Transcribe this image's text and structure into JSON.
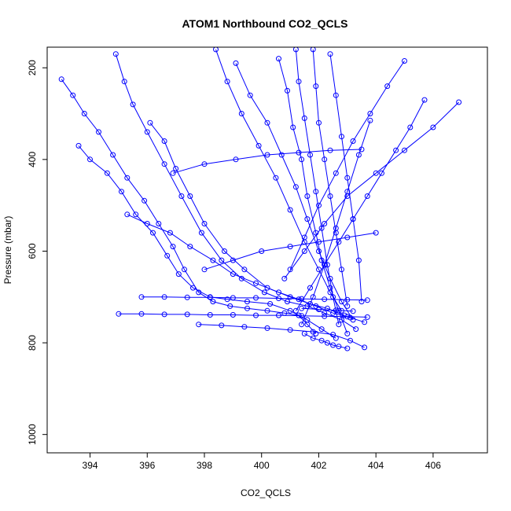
{
  "chart_data": {
    "type": "scatter",
    "title": "ATOM1 Northbound CO2_QCLS",
    "xlabel": "CO2_QCLS",
    "ylabel": "Pressure (mbar)",
    "xlim": [
      392.5,
      407.9
    ],
    "ylim": [
      1040,
      155
    ],
    "y_inverted": true,
    "grid": false,
    "legend": "none",
    "x_ticks": [
      394,
      396,
      398,
      400,
      402,
      404,
      406
    ],
    "y_ticks": [
      200,
      400,
      600,
      800,
      1000
    ],
    "color": "#0000ff",
    "marker": "open-circle",
    "connect_points": true,
    "series": [
      {
        "x": [
          393.0,
          393.4,
          393.8,
          394.3,
          394.8,
          395.3,
          395.9,
          396.4,
          396.9,
          397.3,
          397.8,
          398.3,
          398.9,
          399.5,
          400.2,
          400.8,
          401.3,
          401.6,
          401.9
        ],
        "y": [
          225,
          260,
          300,
          340,
          390,
          440,
          490,
          540,
          590,
          640,
          690,
          710,
          720,
          725,
          730,
          735,
          740,
          760,
          780
        ]
      },
      {
        "x": [
          393.6,
          394.0,
          394.6,
          395.1,
          395.6,
          396.2,
          396.7,
          397.1,
          397.6,
          398.2,
          398.8,
          399.5,
          400.3,
          401.0,
          401.6,
          402.1,
          402.6
        ],
        "y": [
          370,
          400,
          430,
          470,
          520,
          560,
          610,
          650,
          680,
          700,
          705,
          710,
          715,
          730,
          750,
          770,
          790
        ]
      },
      {
        "x": [
          394.9,
          395.2,
          395.5,
          396.0,
          396.6,
          397.2,
          397.9,
          398.6,
          399.3,
          400.1,
          400.9,
          401.6,
          402.2,
          402.8,
          403.3
        ],
        "y": [
          170,
          230,
          280,
          340,
          410,
          480,
          560,
          620,
          660,
          690,
          710,
          720,
          735,
          750,
          770
        ]
      },
      {
        "x": [
          395.3,
          396.0,
          396.8,
          397.5,
          398.3,
          399.0,
          399.8,
          400.6,
          401.3,
          401.9,
          402.5,
          403.1,
          403.6
        ],
        "y": [
          520,
          540,
          560,
          590,
          620,
          650,
          670,
          690,
          705,
          720,
          735,
          745,
          755
        ]
      },
      {
        "x": [
          396.1,
          396.6,
          397.0,
          397.5,
          398.0,
          398.7,
          399.4,
          400.2,
          401.0,
          401.7,
          402.3,
          402.9
        ],
        "y": [
          320,
          360,
          420,
          480,
          540,
          600,
          640,
          680,
          700,
          715,
          725,
          740
        ]
      },
      {
        "x": [
          395.0,
          395.8,
          396.6,
          397.4,
          398.2,
          399.0,
          399.8,
          400.6,
          401.4,
          402.2,
          403.0,
          403.7
        ],
        "y": [
          737,
          737,
          738,
          738,
          739,
          739,
          740,
          740,
          741,
          742,
          743,
          744
        ]
      },
      {
        "x": [
          395.8,
          396.6,
          397.4,
          398.2,
          399.0,
          399.8,
          400.6,
          401.4,
          402.2,
          403.0,
          403.7
        ],
        "y": [
          700,
          700,
          701,
          701,
          702,
          702,
          703,
          704,
          705,
          706,
          707
        ]
      },
      {
        "x": [
          397.8,
          398.6,
          399.4,
          400.2,
          401.0,
          401.8,
          402.5,
          403.1,
          403.6
        ],
        "y": [
          760,
          762,
          765,
          768,
          772,
          776,
          782,
          795,
          810
        ]
      },
      {
        "x": [
          398.4,
          398.8,
          399.3,
          399.9,
          400.5,
          401.0,
          401.5,
          402.0,
          402.4,
          402.8
        ],
        "y": [
          160,
          230,
          300,
          370,
          440,
          510,
          580,
          640,
          690,
          730
        ]
      },
      {
        "x": [
          399.1,
          399.6,
          400.2,
          400.7,
          401.2,
          401.6,
          402.0,
          402.4,
          402.8,
          403.2
        ],
        "y": [
          190,
          260,
          320,
          390,
          460,
          530,
          600,
          660,
          710,
          750
        ]
      },
      {
        "x": [
          400.6,
          400.9,
          401.1,
          401.4,
          401.6,
          401.9,
          402.1,
          402.4,
          402.7,
          403.0
        ],
        "y": [
          180,
          250,
          330,
          400,
          480,
          560,
          620,
          680,
          730,
          780
        ]
      },
      {
        "x": [
          401.2,
          401.3,
          401.5,
          401.7,
          401.9,
          402.1,
          402.3,
          402.5,
          402.7
        ],
        "y": [
          160,
          230,
          310,
          390,
          470,
          550,
          630,
          700,
          760
        ]
      },
      {
        "x": [
          401.8,
          401.9,
          402.0,
          402.2,
          402.4,
          402.6,
          402.8,
          403.0
        ],
        "y": [
          160,
          240,
          320,
          400,
          480,
          560,
          640,
          720
        ]
      },
      {
        "x": [
          402.4,
          402.6,
          402.8,
          403.0,
          403.2,
          403.4,
          403.5
        ],
        "y": [
          170,
          260,
          350,
          440,
          530,
          620,
          710
        ]
      },
      {
        "x": [
          405.7,
          405.2,
          404.7,
          404.2,
          403.7,
          403.2,
          402.7,
          402.2,
          401.7,
          401.2
        ],
        "y": [
          270,
          330,
          380,
          430,
          480,
          530,
          580,
          630,
          680,
          730
        ]
      },
      {
        "x": [
          406.9,
          406.0,
          405.0,
          404.0,
          403.0,
          402.2,
          401.5,
          400.8
        ],
        "y": [
          275,
          330,
          380,
          430,
          480,
          540,
          600,
          660
        ]
      },
      {
        "x": [
          405.0,
          404.4,
          403.8,
          403.2,
          402.6,
          402.0,
          401.5,
          401.0
        ],
        "y": [
          185,
          240,
          300,
          360,
          430,
          500,
          570,
          640
        ]
      },
      {
        "x": [
          403.8,
          403.4,
          403.0,
          402.6,
          402.2,
          401.8,
          401.4
        ],
        "y": [
          315,
          390,
          470,
          550,
          630,
          700,
          760
        ]
      },
      {
        "x": [
          396.9,
          398.0,
          399.1,
          400.2,
          401.3,
          402.4,
          403.5
        ],
        "y": [
          430,
          410,
          400,
          390,
          385,
          380,
          378
        ]
      },
      {
        "x": [
          398.0,
          399.0,
          400.0,
          401.0,
          402.0,
          403.0,
          404.0
        ],
        "y": [
          640,
          620,
          600,
          590,
          580,
          570,
          560
        ]
      },
      {
        "x": [
          401.5,
          401.8,
          402.1,
          402.3,
          402.5,
          402.7,
          403.0
        ],
        "y": [
          780,
          790,
          795,
          800,
          805,
          808,
          812
        ]
      },
      {
        "x": [
          401.4,
          402.0,
          402.6,
          403.2
        ],
        "y": [
          725,
          727,
          729,
          731
        ]
      }
    ]
  }
}
